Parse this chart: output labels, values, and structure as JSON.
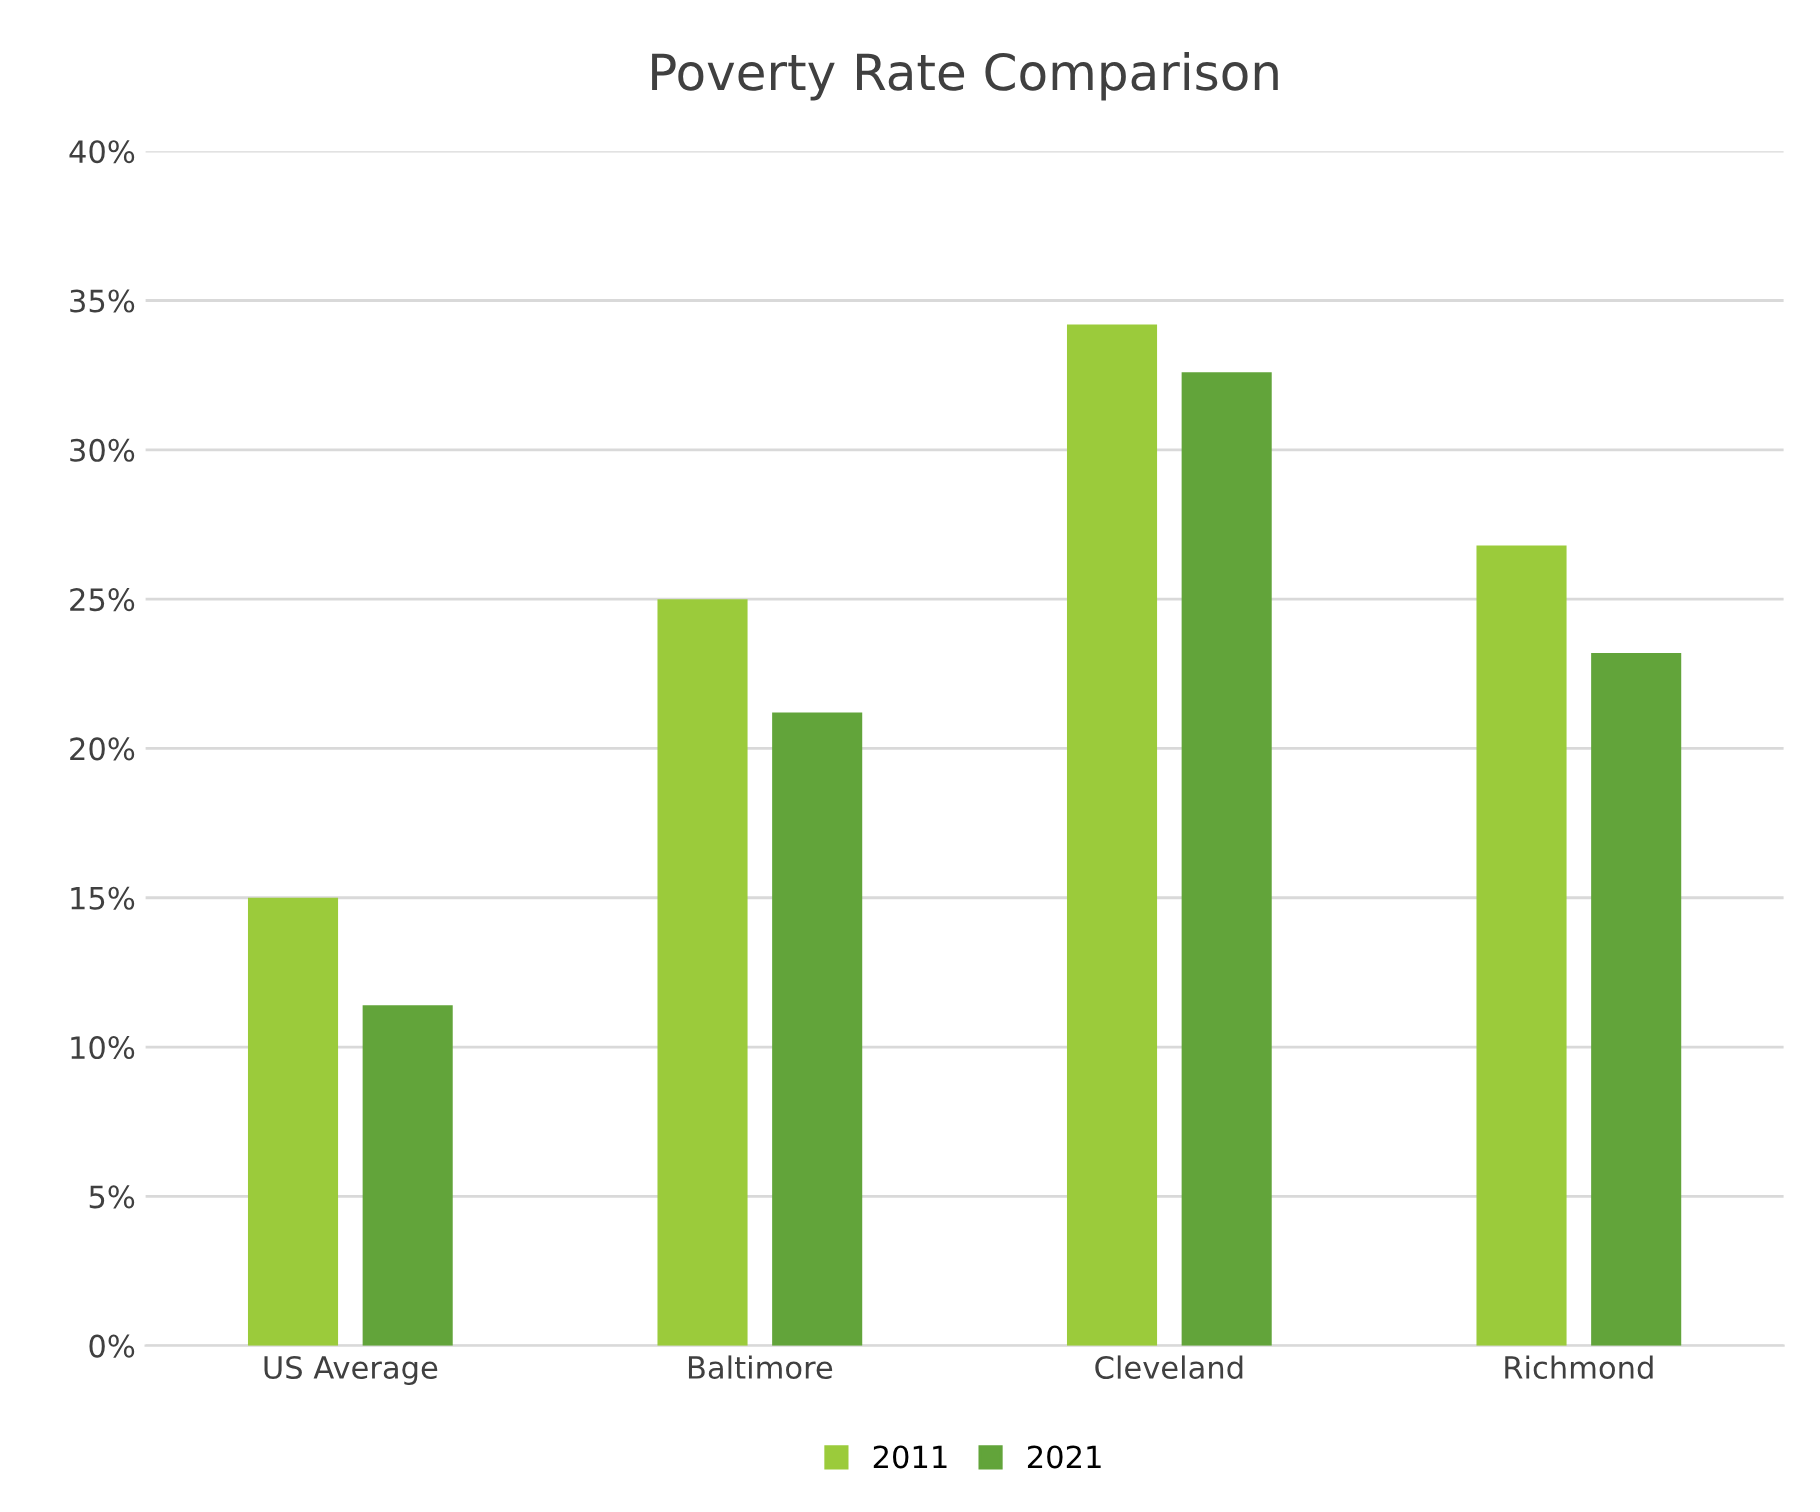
{
  "chart_data": {
    "type": "bar",
    "title": "Poverty Rate Comparison",
    "categories": [
      "US Average",
      "Baltimore",
      "Cleveland",
      "Richmond"
    ],
    "series": [
      {
        "name": "2011",
        "color": "#9bcb3b",
        "values": [
          15.0,
          25.0,
          34.2,
          26.8
        ]
      },
      {
        "name": "2021",
        "color": "#62a43a",
        "values": [
          11.4,
          21.2,
          32.6,
          23.2
        ]
      }
    ],
    "ylim": [
      0,
      40
    ],
    "yticks": [
      {
        "value": 0,
        "label": "0%"
      },
      {
        "value": 5,
        "label": "5%"
      },
      {
        "value": 10,
        "label": "10%"
      },
      {
        "value": 15,
        "label": "15%"
      },
      {
        "value": 20,
        "label": "20%"
      },
      {
        "value": 25,
        "label": "25%"
      },
      {
        "value": 30,
        "label": "30%"
      },
      {
        "value": 35,
        "label": "35%"
      },
      {
        "value": 40,
        "label": "40%"
      }
    ],
    "grid": "y",
    "legend": "bottom"
  }
}
